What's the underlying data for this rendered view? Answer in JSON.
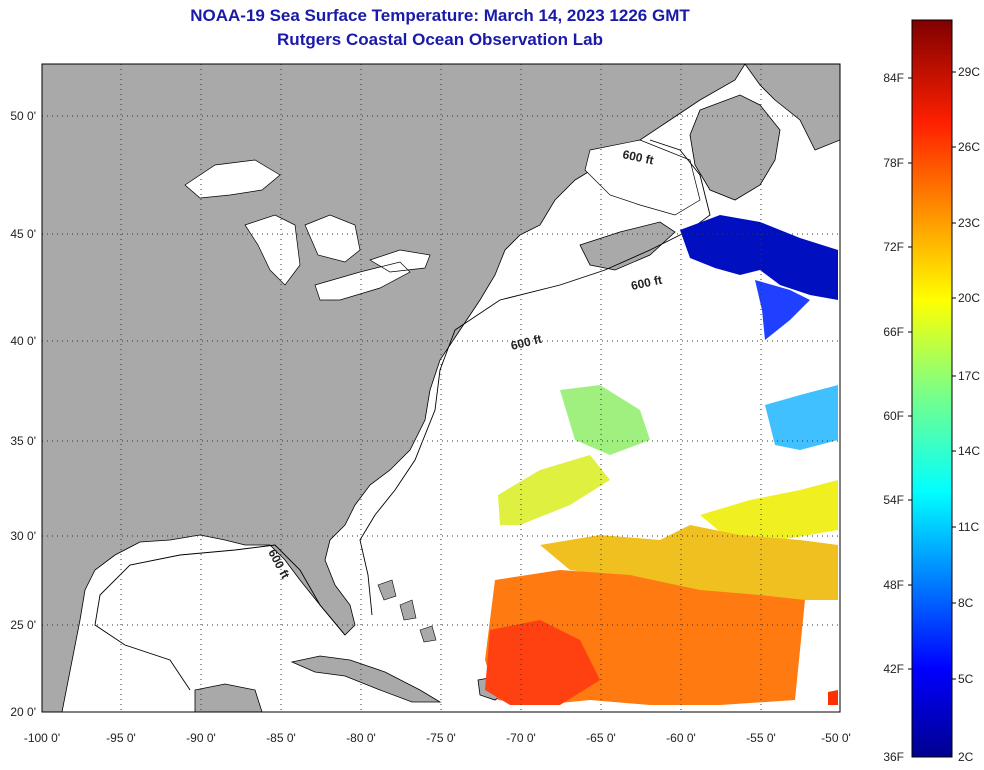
{
  "title_line1": "NOAA-19 Sea Surface Temperature:  March 14, 2023 1226 GMT",
  "title_line2": "Rutgers Coastal Ocean Observation Lab",
  "lat_labels": [
    "50 0'",
    "45 0'",
    "40 0'",
    "35 0'",
    "30 0'",
    "25 0'",
    "20 0'"
  ],
  "lon_labels": [
    "-100 0'",
    "-95 0'",
    "-90 0'",
    "-85 0'",
    "-80 0'",
    "-75 0'",
    "-70 0'",
    "-65 0'",
    "-60 0'",
    "-55 0'",
    "-50 0'"
  ],
  "contour_label": "600 ft",
  "colorbar": {
    "fahrenheit": [
      "84F",
      "78F",
      "72F",
      "66F",
      "60F",
      "54F",
      "48F",
      "42F",
      "36F"
    ],
    "celsius": [
      "29C",
      "26C",
      "23C",
      "20C",
      "17C",
      "14C",
      "11C",
      "8C",
      "5C",
      "2C"
    ]
  },
  "colors": {
    "land": "#a9a9a9",
    "ocean": "#ffffff",
    "title": "#1a1aa8"
  }
}
